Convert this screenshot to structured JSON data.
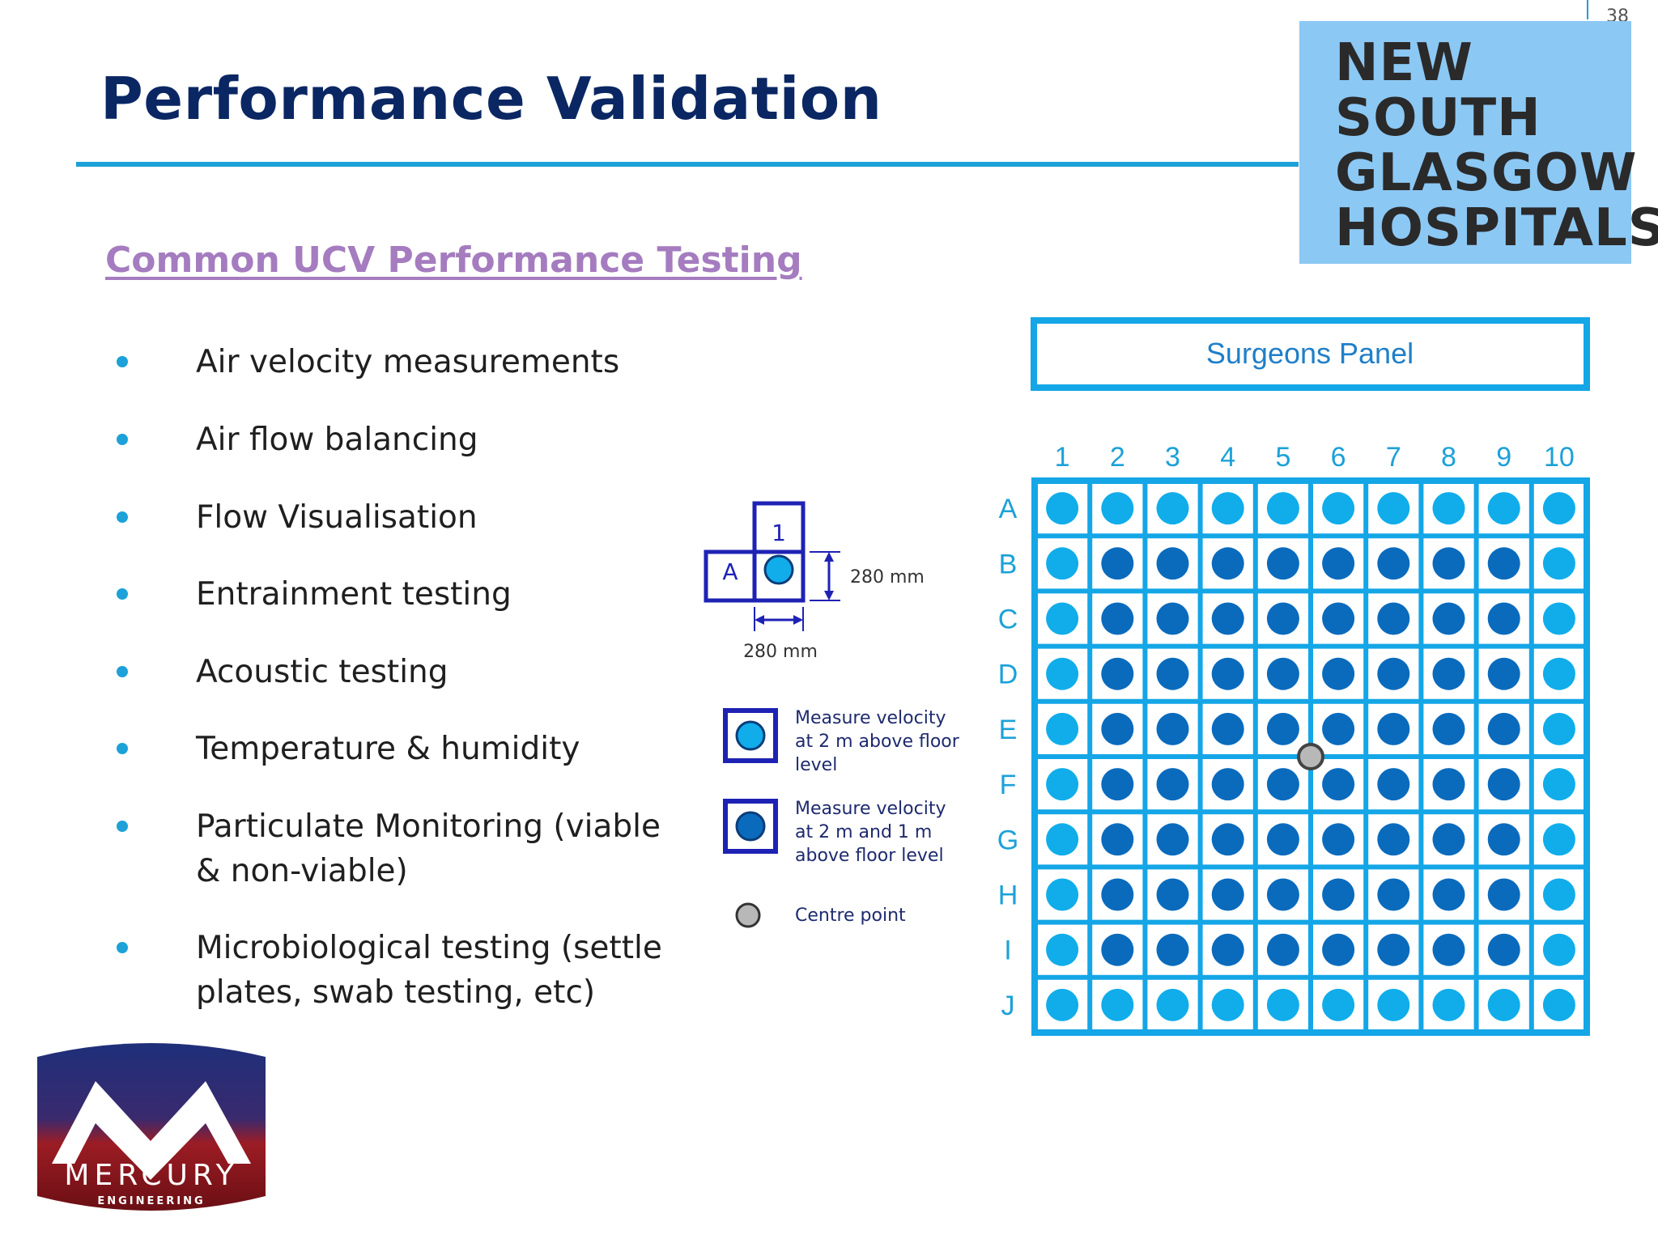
{
  "slide": {
    "title": "Performance Validation",
    "page_number": "38"
  },
  "logo": {
    "lines": [
      "NEW",
      "SOUTH",
      "GLASGOW",
      "HOSPITALS"
    ],
    "background": "#8cc8f4"
  },
  "subtitle": "Common UCV Performance Testing",
  "bullets": [
    "Air velocity measurements",
    "Air flow balancing",
    "Flow Visualisation",
    "Entrainment testing",
    "Acoustic testing",
    "Temperature & humidity",
    "Particulate Monitoring (viable & non-viable)",
    "Microbiological testing (settle plates, swab testing, etc)"
  ],
  "diagram": {
    "panel_label": "Surgeons Panel",
    "columns": [
      "1",
      "2",
      "3",
      "4",
      "5",
      "6",
      "7",
      "8",
      "9",
      "10"
    ],
    "rows": [
      "A",
      "B",
      "C",
      "D",
      "E",
      "F",
      "G",
      "H",
      "I",
      "J"
    ],
    "cell_key": {
      "row_label": "A",
      "col_label": "1",
      "dim_vertical": "280 mm",
      "dim_horizontal": "280 mm"
    },
    "legend": [
      {
        "kind": "light",
        "text": "Measure velocity at 2 m above floor level"
      },
      {
        "kind": "dark",
        "text": "Measure velocity at 2 m and 1 m above floor level"
      },
      {
        "kind": "centre",
        "text": "Centre point"
      }
    ],
    "colors": {
      "grid": "#14a6e6",
      "light_dot": "#10adea",
      "dark_dot": "#0a6bbd",
      "centre_dot": "#b8b8b8",
      "key_border": "#1e22b4",
      "header_text": "#1ca1d8"
    }
  },
  "mercury_logo": {
    "name": "MERCURY",
    "tagline": "ENGINEERING"
  }
}
